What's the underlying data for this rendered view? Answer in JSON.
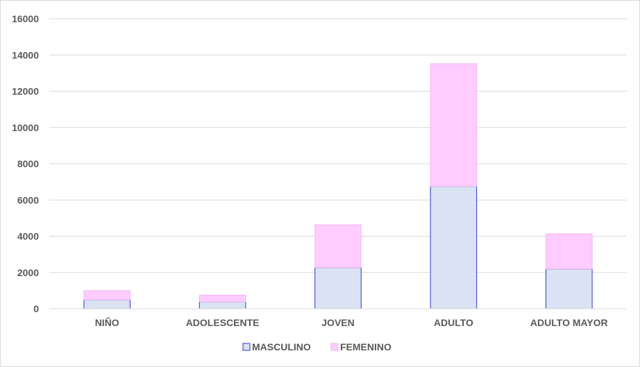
{
  "chart_data": {
    "type": "bar",
    "stacked": true,
    "categories": [
      "NIÑO",
      "ADOLESCENTE",
      "JOVEN",
      "ADULTO",
      "ADULTO MAYOR"
    ],
    "series": [
      {
        "name": "MASCULINO",
        "values": [
          490,
          380,
          2270,
          6750,
          2190
        ],
        "color": "#dae3f3",
        "stroke": "#2e33c8"
      },
      {
        "name": "FEMENINO",
        "values": [
          510,
          370,
          2360,
          6770,
          1940
        ],
        "color": "#ffccff",
        "stroke": "#f0b8f0"
      }
    ],
    "ylim": [
      0,
      16000
    ],
    "yticks": [
      "0",
      "2000",
      "4000",
      "6000",
      "8000",
      "10000",
      "12000",
      "14000",
      "16000"
    ],
    "grid": true,
    "legend_position": "bottom"
  }
}
